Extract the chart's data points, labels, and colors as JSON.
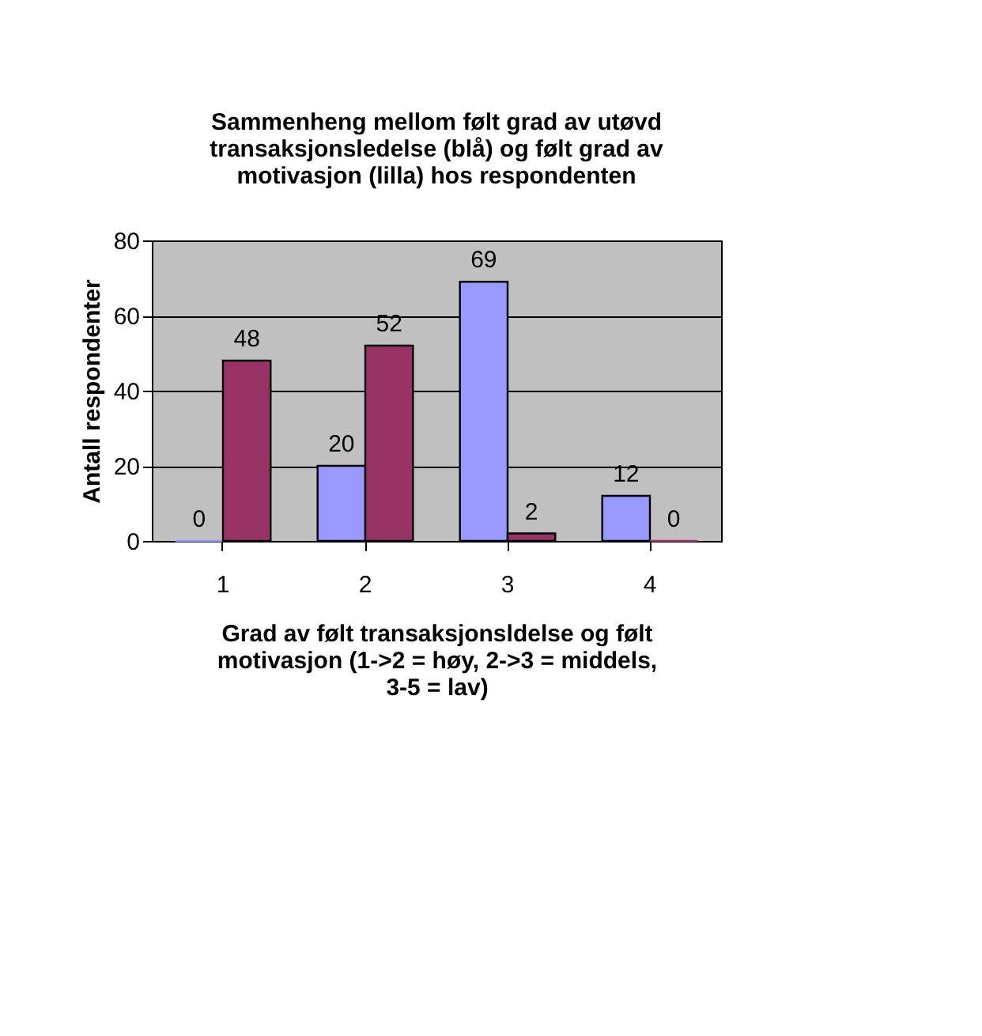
{
  "chart_data": {
    "type": "bar",
    "title": "Sammenheng mellom følt grad av utøvd transaksjonsledelse (blå) og følt grad av motivasjon (lilla) hos respondenten",
    "categories": [
      "1",
      "2",
      "3",
      "4"
    ],
    "series": [
      {
        "color": "#9999ff",
        "values": [
          0,
          20,
          69,
          12
        ]
      },
      {
        "color": "#993366",
        "values": [
          48,
          52,
          2,
          0
        ]
      }
    ],
    "xlabel": "Grad av følt transaksjonsldelse og følt motivasjon (1->2 = høy, 2->3 = middels, 3-5 = lav)",
    "ylabel": "Antall respondenter",
    "ylim": [
      0,
      80
    ],
    "yticks": [
      0,
      20,
      40,
      60,
      80
    ],
    "grid": "y",
    "legend": false,
    "data_labels": true
  }
}
